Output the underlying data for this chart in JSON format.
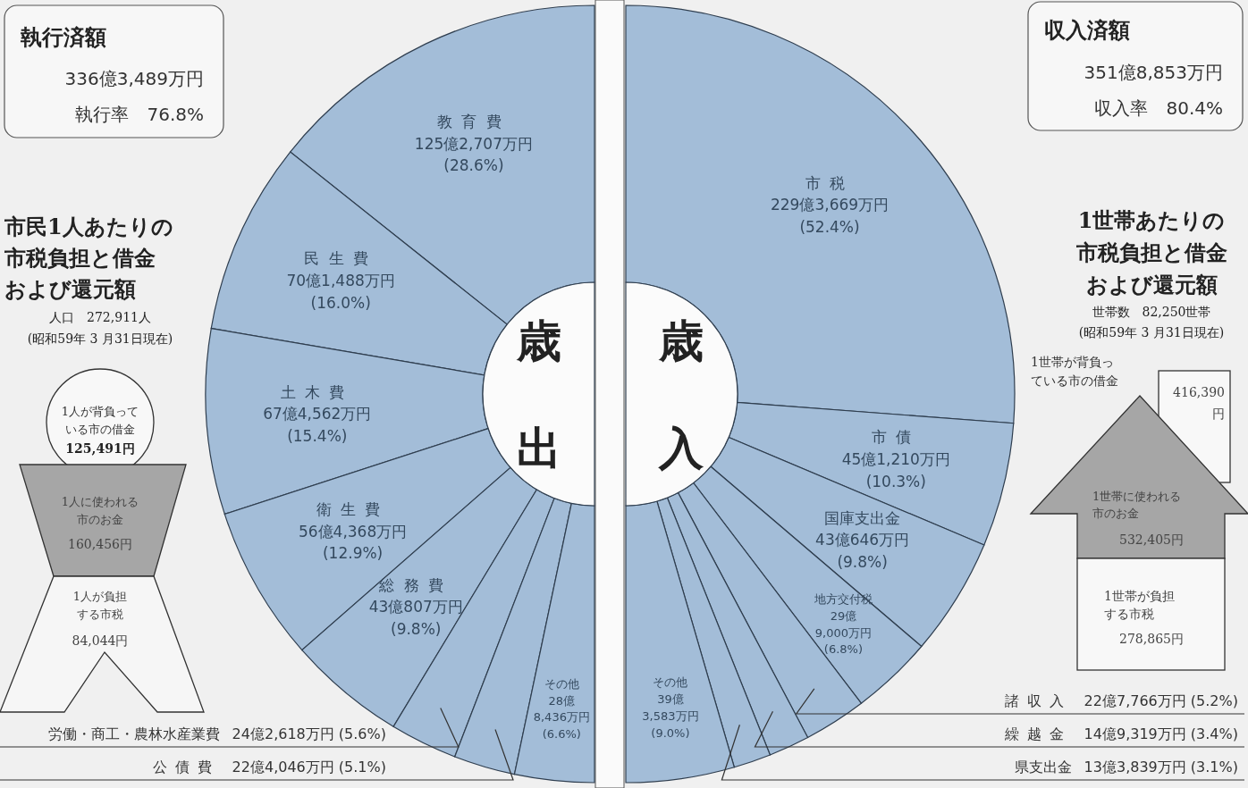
{
  "chart_data": [
    {
      "type": "other",
      "title": "執行済額",
      "annotations": [
        "336億3,489万円",
        "執行率　76.8%"
      ]
    },
    {
      "type": "other",
      "title": "市民1人あたりの市税負担と借金および還元額",
      "subtitle": "人口　272,911人",
      "annotations": [
        "(昭和59年 3 月31日現在)",
        "1人が背負っている市の借金",
        "125,491円",
        "1人に使われる市のお金",
        "160,456円",
        "1人が負担する市税",
        "84,044円"
      ]
    },
    {
      "type": "donut",
      "title": "歳出",
      "categories": [
        "教育費",
        "民生費",
        "土木費",
        "衛生費",
        "総務費",
        "労働・商工・農林水産業費",
        "公債費",
        "その他"
      ],
      "values": [
        28.6,
        16.0,
        15.4,
        12.9,
        9.8,
        5.6,
        5.1,
        6.6
      ],
      "value_labels": [
        "125億2,707万円 (28.6%)",
        "70億1,488万円 (16.0%)",
        "67億4,562万円 (15.4%)",
        "56億4,368万円 (12.9%)",
        "43億807万円 (9.8%)",
        "24億2,618万円 (5.6%)",
        "22億4,046万円 (5.1%)",
        "28億8,436万円 (6.6%)"
      ],
      "colors": [
        "#a3bdd8",
        "#a3bdd8",
        "#a3bdd8",
        "#a3bdd8",
        "#a3bdd8",
        "#a3bdd8",
        "#a3bdd8",
        "#a3bdd8"
      ]
    },
    {
      "type": "donut",
      "title": "歳入",
      "categories": [
        "市税",
        "市債",
        "国庫支出金",
        "地方交付税",
        "諸収入",
        "繰越金",
        "県支出金",
        "その他"
      ],
      "values": [
        52.4,
        10.3,
        9.8,
        6.8,
        5.2,
        3.4,
        3.1,
        9.0
      ],
      "value_labels": [
        "229億3,669万円 (52.4%)",
        "45億1,210万円 (10.3%)",
        "43億646万円 (9.8%)",
        "29億9,000万円 (6.8%)",
        "22億7,766万円 (5.2%)",
        "14億9,319万円 (3.4%)",
        "13億3,839万円 (3.1%)",
        "39億3,583万円 (9.0%)"
      ],
      "colors": [
        "#a3bdd8",
        "#a3bdd8",
        "#a3bdd8",
        "#a3bdd8",
        "#a3bdd8",
        "#a3bdd8",
        "#a3bdd8",
        "#a3bdd8"
      ]
    },
    {
      "type": "other",
      "title": "収入済額",
      "annotations": [
        "351億8,853万円",
        "収入率　80.4%"
      ]
    },
    {
      "type": "other",
      "title": "1世帯あたりの市税負担と借金および還元額",
      "subtitle": "世帯数　82,250世帯",
      "annotations": [
        "(昭和59年 3 月31日現在)",
        "1世帯が背負っている市の借金",
        "416,390円",
        "1世帯に使われる市のお金",
        "532,405円",
        "1世帯が負担する市税",
        "278,865円"
      ]
    }
  ]
}
